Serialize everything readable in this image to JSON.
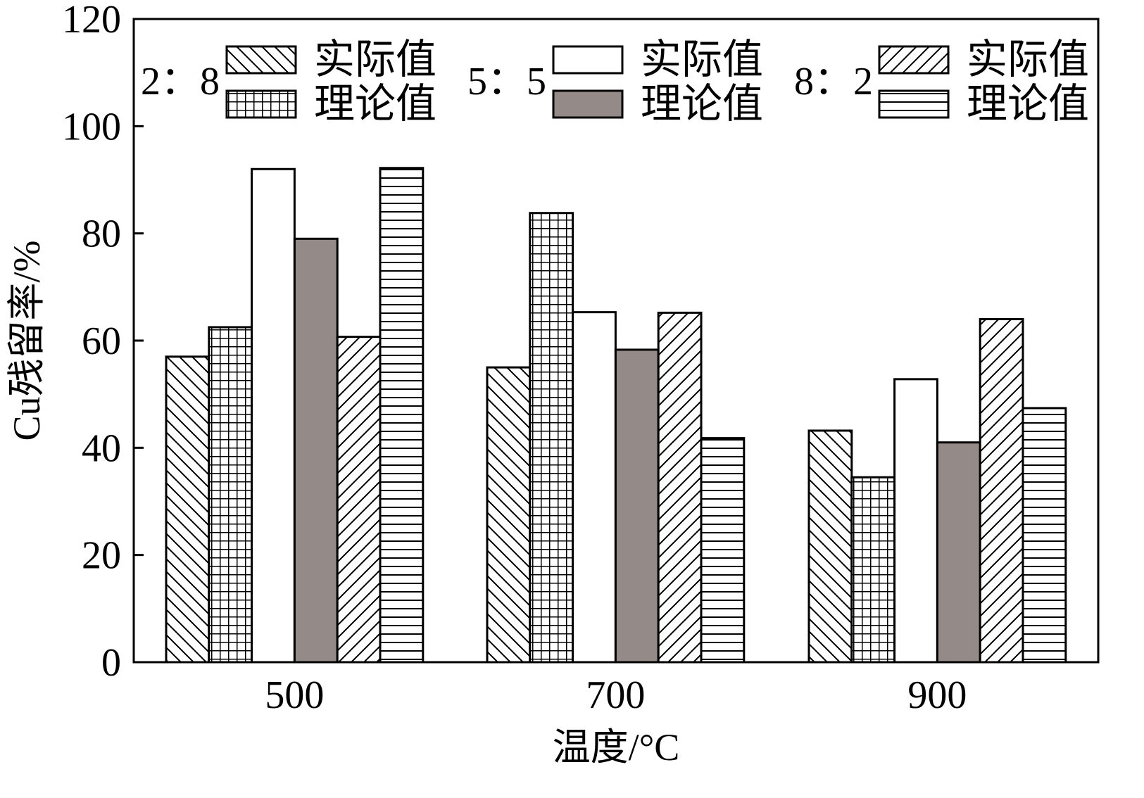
{
  "chart_data": {
    "type": "bar",
    "categories": [
      "500",
      "700",
      "900"
    ],
    "xlabel": "温度/°C",
    "ylabel": "Cu残留率/%",
    "ylim": [
      0,
      120
    ],
    "yticks": [
      0,
      20,
      40,
      60,
      80,
      100,
      120
    ],
    "grid": false,
    "legend_position": "top",
    "legend_groups": [
      {
        "ratio": "2：8",
        "entries": [
          "实际值",
          "理论值"
        ]
      },
      {
        "ratio": "5：5",
        "entries": [
          "实际值",
          "理论值"
        ]
      },
      {
        "ratio": "8：2",
        "entries": [
          "实际值",
          "理论值"
        ]
      }
    ],
    "series": [
      {
        "name": "2：8 实际值",
        "pattern": "hatch-backslash",
        "values": [
          57,
          55,
          43.2
        ]
      },
      {
        "name": "2：8 理论值",
        "pattern": "grid",
        "values": [
          62.5,
          83.8,
          34.5
        ]
      },
      {
        "name": "5：5 实际值",
        "pattern": "white",
        "values": [
          92,
          65.3,
          52.8
        ]
      },
      {
        "name": "5：5 理论值",
        "pattern": "gray",
        "values": [
          79,
          58.3,
          41
        ]
      },
      {
        "name": "8：2 实际值",
        "pattern": "hatch-slash",
        "values": [
          60.7,
          65.2,
          64
        ]
      },
      {
        "name": "8：2 理论值",
        "pattern": "horizontal-lines",
        "values": [
          92.2,
          41.8,
          47.4
        ]
      }
    ],
    "colors": {
      "gray_fill": "#948b88",
      "stroke": "#000000",
      "background": "#ffffff"
    }
  }
}
